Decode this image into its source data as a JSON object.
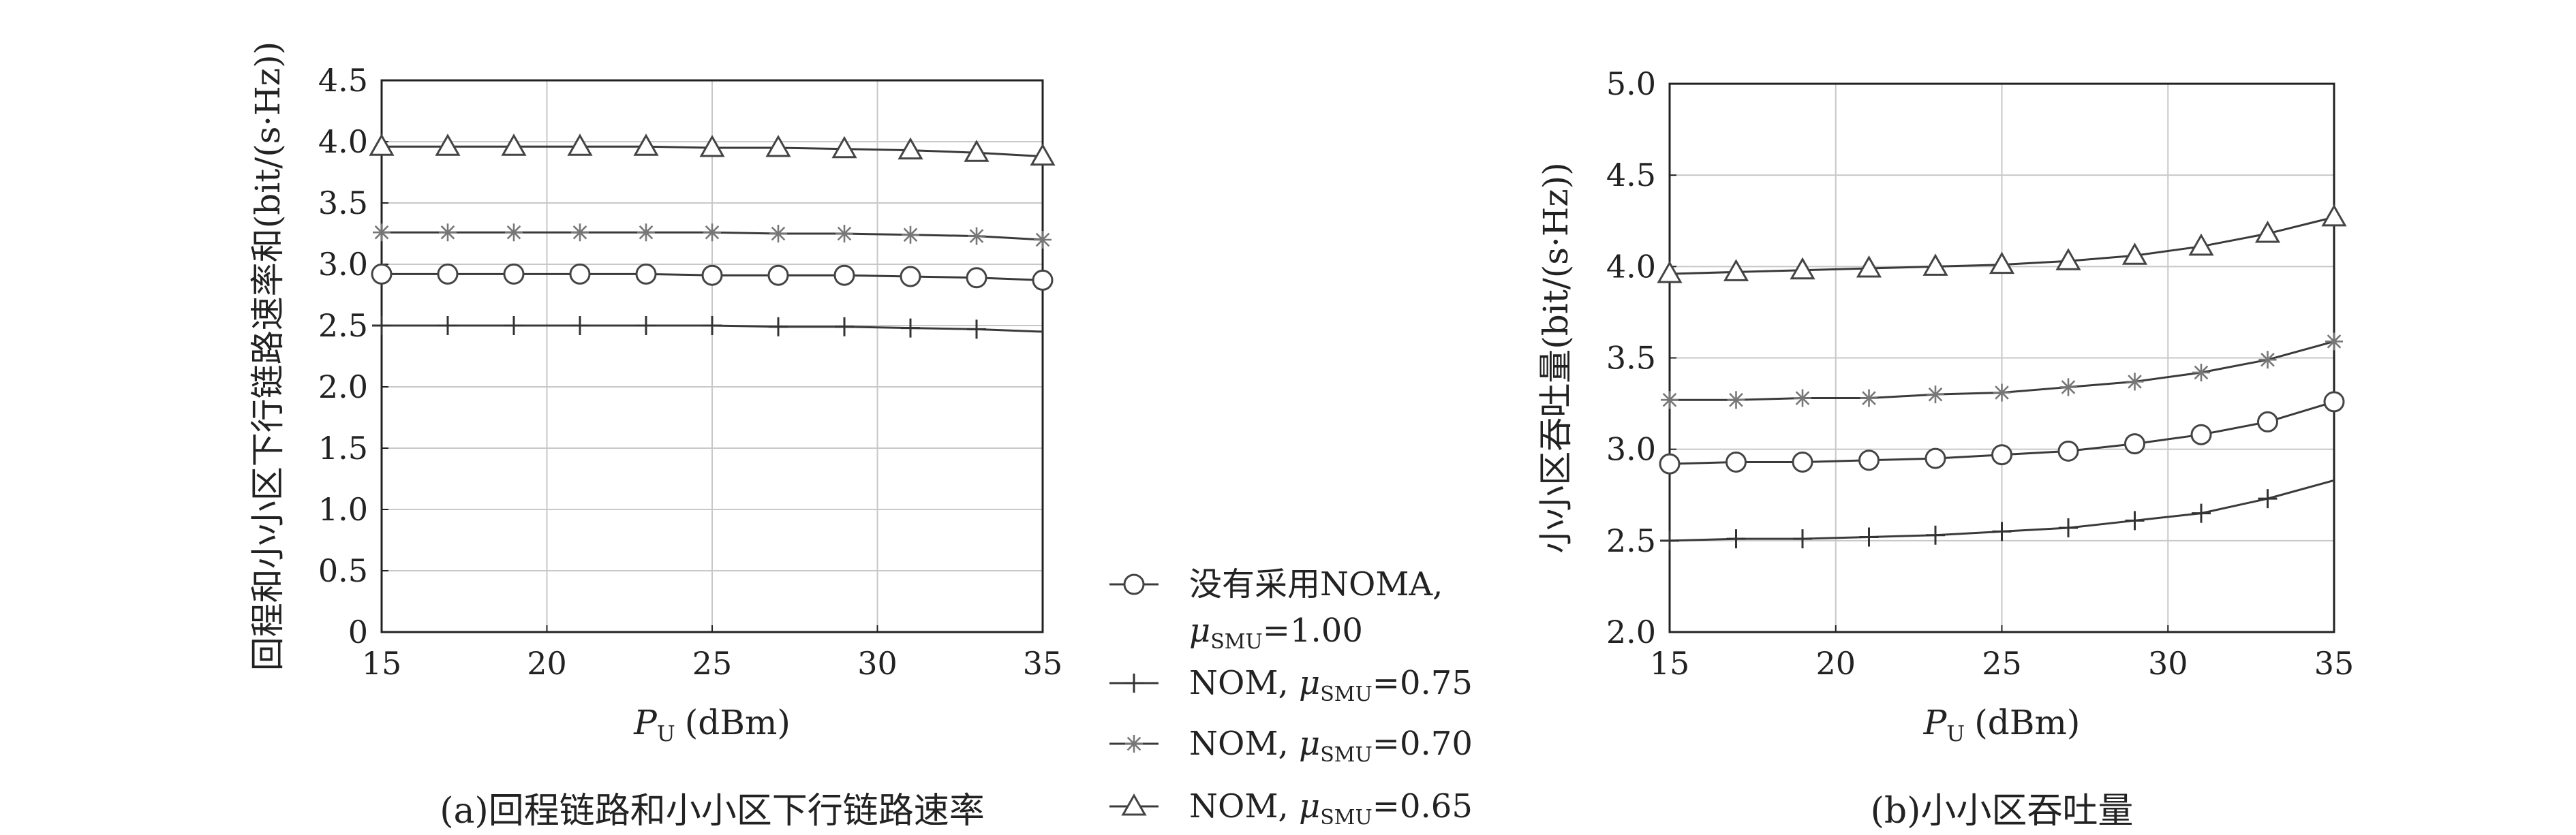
{
  "chart_data": [
    {
      "type": "line",
      "title": "",
      "caption": "(a)回程链路和小小区下行链路速率",
      "xlabel": "P_U (dBm)",
      "xlabel_main": "P",
      "xlabel_sub": "U",
      "xlabel_unit": "(dBm)",
      "ylabel": "回程和小小区下行链路速率和(bit/(s·Hz))",
      "xlim": [
        15,
        35
      ],
      "ylim": [
        0,
        4.5
      ],
      "xticks": [
        "15",
        "20",
        "25",
        "30",
        "35"
      ],
      "yticks": [
        "0",
        "0.5",
        "1.0",
        "1.5",
        "2.0",
        "2.5",
        "3.0",
        "3.5",
        "4.0",
        "4.5"
      ],
      "grid": true,
      "x": [
        15,
        17,
        19,
        21,
        23,
        25,
        27,
        29,
        31,
        33,
        35
      ],
      "series": [
        {
          "marker": "circle",
          "values": [
            2.92,
            2.92,
            2.92,
            2.92,
            2.92,
            2.91,
            2.91,
            2.91,
            2.9,
            2.89,
            2.87
          ]
        },
        {
          "marker": "plus",
          "values": [
            2.5,
            2.5,
            2.5,
            2.5,
            2.5,
            2.5,
            2.49,
            2.49,
            2.48,
            2.47,
            2.45
          ]
        },
        {
          "marker": "star",
          "values": [
            3.26,
            3.26,
            3.26,
            3.26,
            3.26,
            3.26,
            3.25,
            3.25,
            3.24,
            3.23,
            3.2
          ]
        },
        {
          "marker": "triangle",
          "values": [
            3.96,
            3.96,
            3.96,
            3.96,
            3.96,
            3.95,
            3.95,
            3.94,
            3.93,
            3.91,
            3.88
          ]
        }
      ]
    },
    {
      "type": "line",
      "title": "",
      "caption": "(b)小小区吞吐量",
      "xlabel": "P_U (dBm)",
      "xlabel_main": "P",
      "xlabel_sub": "U",
      "xlabel_unit": "(dBm)",
      "ylabel": "小小区吞吐量(bit/(s·Hz))",
      "xlim": [
        15,
        35
      ],
      "ylim": [
        2.0,
        5.0
      ],
      "xticks": [
        "15",
        "20",
        "25",
        "30",
        "35"
      ],
      "yticks": [
        "2.0",
        "2.5",
        "3.0",
        "3.5",
        "4.0",
        "4.5",
        "5.0"
      ],
      "grid": true,
      "x": [
        15,
        17,
        19,
        21,
        23,
        25,
        27,
        29,
        31,
        33,
        35
      ],
      "series": [
        {
          "marker": "circle",
          "values": [
            2.92,
            2.93,
            2.93,
            2.94,
            2.95,
            2.97,
            2.99,
            3.03,
            3.08,
            3.15,
            3.26
          ]
        },
        {
          "marker": "plus",
          "values": [
            2.5,
            2.51,
            2.51,
            2.52,
            2.53,
            2.55,
            2.57,
            2.61,
            2.65,
            2.73,
            2.83
          ]
        },
        {
          "marker": "star",
          "values": [
            3.27,
            3.27,
            3.28,
            3.28,
            3.3,
            3.31,
            3.34,
            3.37,
            3.42,
            3.49,
            3.59
          ]
        },
        {
          "marker": "triangle",
          "values": [
            3.96,
            3.97,
            3.98,
            3.99,
            4.0,
            4.01,
            4.03,
            4.06,
            4.11,
            4.18,
            4.27
          ]
        }
      ]
    }
  ],
  "legend": {
    "placement": "between-panels",
    "entries": [
      {
        "marker": "circle",
        "line1": "没有采用NOMA,",
        "line2_main": "μ",
        "line2_sub": "SMU",
        "line2_rest": "=1.00"
      },
      {
        "marker": "plus",
        "line1_main": "NOM, μ",
        "line1_sub": "SMU",
        "line1_rest": "=0.75"
      },
      {
        "marker": "star",
        "line1_main": "NOM, μ",
        "line1_sub": "SMU",
        "line1_rest": "=0.70"
      },
      {
        "marker": "triangle",
        "line1_main": "NOM, μ",
        "line1_sub": "SMU",
        "line1_rest": "=0.65"
      }
    ]
  }
}
